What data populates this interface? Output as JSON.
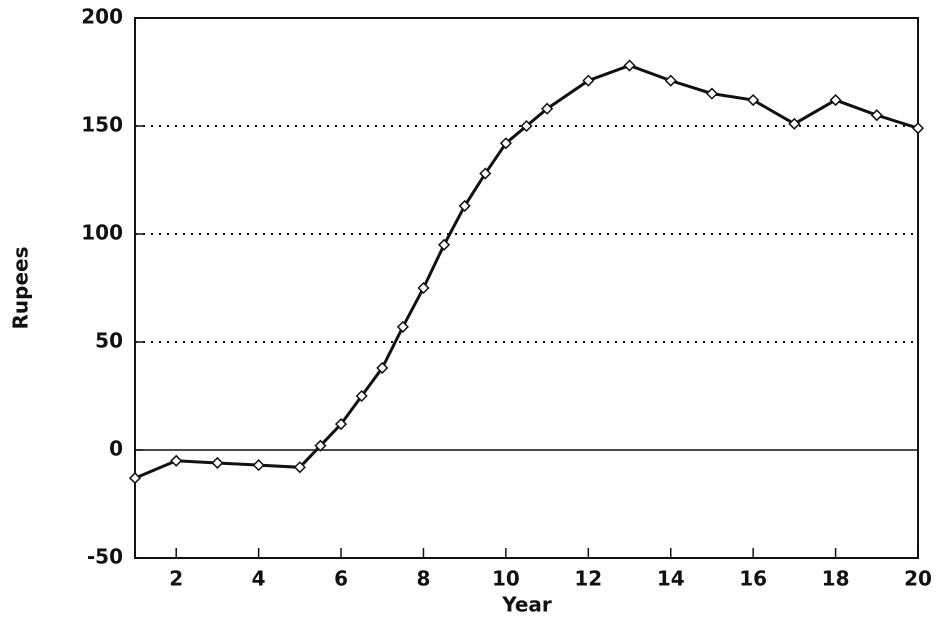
{
  "chart_data": {
    "type": "line",
    "x_label": "Year",
    "y_label": "Rupees",
    "x": [
      1,
      2,
      3,
      4,
      5,
      5.5,
      6,
      6.5,
      7,
      7.5,
      8,
      8.5,
      9,
      9.5,
      10,
      10.5,
      11,
      12,
      13,
      14,
      15,
      16,
      17,
      18,
      19,
      20
    ],
    "series": [
      {
        "color": "#111111",
        "values": [
          -13,
          -5,
          -6,
          -7,
          -8,
          2,
          12,
          25,
          38,
          57,
          75,
          95,
          113,
          128,
          142,
          150,
          158,
          171,
          178,
          171,
          165,
          162,
          151,
          162,
          155,
          149
        ]
      }
    ],
    "xlim": [
      1,
      20
    ],
    "xticks": [
      2,
      4,
      6,
      8,
      10,
      12,
      14,
      16,
      18,
      20
    ],
    "ylim": [
      -50,
      200
    ],
    "yticks": [
      -50,
      0,
      50,
      100,
      150,
      200
    ],
    "grid": true
  }
}
